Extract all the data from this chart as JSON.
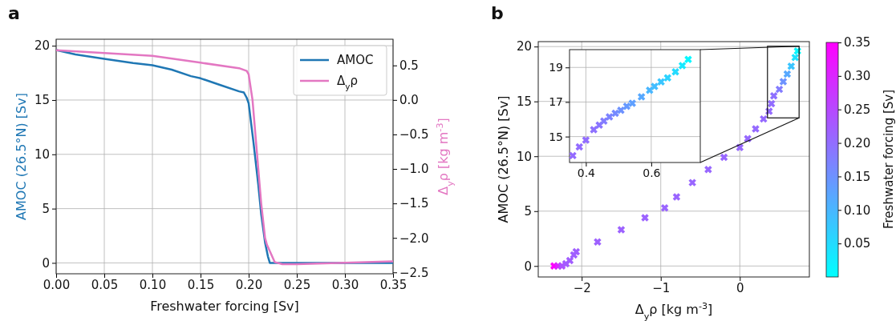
{
  "chart_data": [
    {
      "type": "line",
      "title": "a",
      "xlabel": "Freshwater forcing [Sv]",
      "ylabel": "AMOC (26.5°N) [Sv]",
      "y2label": "Δ$_{y}$ρ [kg m$^{-3}$]",
      "xlim": [
        0,
        0.35
      ],
      "xticks": [
        {
          "value": 0,
          "label": "0.00"
        },
        {
          "value": 0.05,
          "label": "0.05"
        },
        {
          "value": 0.1,
          "label": "0.10"
        },
        {
          "value": 0.15,
          "label": "0.15"
        },
        {
          "value": 0.2,
          "label": "0.20"
        },
        {
          "value": 0.25,
          "label": "0.25"
        },
        {
          "value": 0.3,
          "label": "0.30"
        },
        {
          "value": 0.35,
          "label": "0.35"
        }
      ],
      "ylim": [
        -1,
        20.6
      ],
      "yticks": [
        0,
        5,
        10,
        15,
        20
      ],
      "y2lim": [
        -2.52,
        0.88
      ],
      "y2ticks": [
        {
          "value": 0.5,
          "label": "0.5"
        },
        {
          "value": 0,
          "label": "0.0"
        },
        {
          "value": -0.5,
          "label": "−0.5"
        },
        {
          "value": -1,
          "label": "−1.0"
        },
        {
          "value": -1.5,
          "label": "−1.5"
        },
        {
          "value": -2,
          "label": "−2.0"
        },
        {
          "value": -2.5,
          "label": "−2.5"
        }
      ],
      "grid": true,
      "legend": "top right",
      "series": [
        {
          "name": "AMOC",
          "color": "#1f77b4",
          "x": [
            0,
            0.02,
            0.05,
            0.08,
            0.1,
            0.11,
            0.12,
            0.14,
            0.15,
            0.17,
            0.19,
            0.195,
            0.198,
            0.2,
            0.205,
            0.21,
            0.213,
            0.217,
            0.22,
            0.222,
            0.25,
            0.3,
            0.35
          ],
          "values": [
            19.6,
            19.2,
            18.8,
            18.4,
            18.2,
            18.0,
            17.8,
            17.2,
            17.0,
            16.4,
            15.8,
            15.7,
            15.2,
            14.7,
            11.1,
            7.2,
            4.5,
            1.9,
            0.6,
            0,
            0,
            0,
            0
          ]
        },
        {
          "name": "Δ$_{y}$ρ",
          "color": "#e377c2",
          "axis": "y2",
          "x": [
            0,
            0.05,
            0.1,
            0.15,
            0.19,
            0.198,
            0.2,
            0.204,
            0.21,
            0.213,
            0.217,
            0.219,
            0.227,
            0.235,
            0.25,
            0.3,
            0.35
          ],
          "values": [
            0.72,
            0.68,
            0.64,
            0.54,
            0.46,
            0.42,
            0.37,
            0.0,
            -1.0,
            -1.5,
            -2.0,
            -2.1,
            -2.35,
            -2.38,
            -2.38,
            -2.36,
            -2.34
          ]
        }
      ]
    },
    {
      "type": "scatter",
      "title": "b",
      "xlabel": "Δ$_{y}$ρ [kg m$^{-3}$]",
      "ylabel": "AMOC (26.5°N) [Sv]",
      "clabel": "Freshwater forcing [Sv]",
      "xlim": [
        -2.55,
        0.88
      ],
      "xticks": [
        {
          "value": -2,
          "label": "−2"
        },
        {
          "value": -1,
          "label": "−1"
        },
        {
          "value": 0,
          "label": "0"
        }
      ],
      "ylim": [
        -1,
        20.45
      ],
      "yticks": [
        0,
        5,
        10,
        15,
        20
      ],
      "grid": true,
      "marker": "cross",
      "clim": [
        0,
        0.35
      ],
      "cticks": [
        {
          "value": 0.05,
          "label": "0.05"
        },
        {
          "value": 0.1,
          "label": "0.10"
        },
        {
          "value": 0.15,
          "label": "0.15"
        },
        {
          "value": 0.2,
          "label": "0.20"
        },
        {
          "value": 0.25,
          "label": "0.25"
        },
        {
          "value": 0.3,
          "label": "0.30"
        },
        {
          "value": 0.35,
          "label": "0.35"
        }
      ],
      "series": [
        {
          "x": [
            -2.35,
            -2.3,
            -2.25,
            -2.2,
            -2.15,
            -2.1,
            -2.07,
            -1.8,
            -1.5,
            -1.2,
            -0.95,
            -0.8,
            -0.6,
            -0.4,
            -0.2,
            0,
            0.1,
            0.2,
            0.3,
            0.37,
            0.4,
            0.43,
            0.5,
            0.55,
            0.6,
            0.65,
            0.7,
            0.73
          ],
          "values": [
            0,
            0,
            0,
            0.2,
            0.5,
            1.0,
            1.3,
            2.2,
            3.3,
            4.4,
            5.3,
            6.3,
            7.6,
            8.8,
            9.9,
            10.8,
            11.6,
            12.5,
            13.4,
            14.1,
            14.8,
            15.5,
            16.1,
            16.8,
            17.5,
            18.2,
            19.0,
            19.6
          ],
          "cvalues": [
            0.35,
            0.3,
            0.24,
            0.225,
            0.222,
            0.22,
            0.219,
            0.217,
            0.215,
            0.214,
            0.212,
            0.211,
            0.21,
            0.209,
            0.208,
            0.207,
            0.206,
            0.205,
            0.204,
            0.203,
            0.2,
            0.195,
            0.18,
            0.15,
            0.12,
            0.08,
            0.04,
            0.01
          ]
        }
      ]
    },
    {
      "type": "scatter",
      "xlim": [
        0.35,
        0.75
      ],
      "xticks": [
        0.4,
        0.6
      ],
      "ylim": [
        13.5,
        20.03
      ],
      "yticks": [
        15,
        17,
        19
      ],
      "grid": true,
      "marker": "cross",
      "series": [
        {
          "x": [
            0.36,
            0.38,
            0.4,
            0.424,
            0.441,
            0.455,
            0.472,
            0.49,
            0.507,
            0.525,
            0.542,
            0.57,
            0.595,
            0.61,
            0.63,
            0.65,
            0.674,
            0.695,
            0.713
          ],
          "values": [
            13.9,
            14.4,
            14.8,
            15.4,
            15.66,
            15.9,
            16.14,
            16.35,
            16.52,
            16.75,
            16.93,
            17.3,
            17.68,
            17.9,
            18.17,
            18.4,
            18.75,
            19.1,
            19.46
          ],
          "colors": [
            "#946bff",
            "#936cff",
            "#926dff",
            "#8e71ff",
            "#8a75ff",
            "#837cff",
            "#7c83ff",
            "#758aff",
            "#6d92ff",
            "#6699ff",
            "#5fa0ff",
            "#57a8ff",
            "#49b6ff",
            "#42bdff",
            "#3ac5ff",
            "#2cd3ff",
            "#24dbff",
            "#16e9ff",
            "#07f8ff"
          ]
        }
      ]
    }
  ]
}
